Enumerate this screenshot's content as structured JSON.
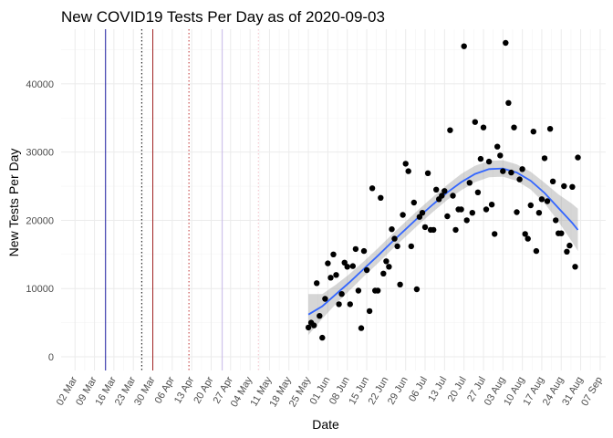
{
  "chart_data": {
    "type": "scatter",
    "title": "New COVID19 Tests Per Day as of 2020-09-03",
    "xlabel": "Date",
    "ylabel": "New Tests Per Day",
    "xlim": [
      "2020-02-26",
      "2020-09-09"
    ],
    "ylim": [
      -2000,
      48000
    ],
    "grid": true,
    "x_ticks": [
      {
        "date": "2020-03-02",
        "label": "02 Mar"
      },
      {
        "date": "2020-03-09",
        "label": "09 Mar"
      },
      {
        "date": "2020-03-16",
        "label": "16 Mar"
      },
      {
        "date": "2020-03-23",
        "label": "23 Mar"
      },
      {
        "date": "2020-03-30",
        "label": "30 Mar"
      },
      {
        "date": "2020-04-06",
        "label": "06 Apr"
      },
      {
        "date": "2020-04-13",
        "label": "13 Apr"
      },
      {
        "date": "2020-04-20",
        "label": "20 Apr"
      },
      {
        "date": "2020-04-27",
        "label": "27 Apr"
      },
      {
        "date": "2020-05-04",
        "label": "04 May"
      },
      {
        "date": "2020-05-11",
        "label": "11 May"
      },
      {
        "date": "2020-05-18",
        "label": "18 May"
      },
      {
        "date": "2020-05-25",
        "label": "25 May"
      },
      {
        "date": "2020-06-01",
        "label": "01 Jun"
      },
      {
        "date": "2020-06-08",
        "label": "08 Jun"
      },
      {
        "date": "2020-06-15",
        "label": "15 Jun"
      },
      {
        "date": "2020-06-22",
        "label": "22 Jun"
      },
      {
        "date": "2020-06-29",
        "label": "29 Jun"
      },
      {
        "date": "2020-07-06",
        "label": "06 Jul"
      },
      {
        "date": "2020-07-13",
        "label": "13 Jul"
      },
      {
        "date": "2020-07-20",
        "label": "20 Jul"
      },
      {
        "date": "2020-07-27",
        "label": "27 Jul"
      },
      {
        "date": "2020-08-03",
        "label": "03 Aug"
      },
      {
        "date": "2020-08-10",
        "label": "10 Aug"
      },
      {
        "date": "2020-08-17",
        "label": "17 Aug"
      },
      {
        "date": "2020-08-24",
        "label": "24 Aug"
      },
      {
        "date": "2020-08-31",
        "label": "31 Aug"
      },
      {
        "date": "2020-09-07",
        "label": "07 Sep"
      }
    ],
    "y_ticks": [
      0,
      10000,
      20000,
      30000,
      40000
    ],
    "vertical_lines": [
      {
        "date": "2020-03-13",
        "color": "#1a1aa0",
        "style": "solid"
      },
      {
        "date": "2020-03-26",
        "color": "#000000",
        "style": "dotted"
      },
      {
        "date": "2020-03-30",
        "color": "#a02020",
        "style": "solid"
      },
      {
        "date": "2020-04-12",
        "color": "#c03030",
        "style": "dotted"
      },
      {
        "date": "2020-04-24",
        "color": "#c8b8e8",
        "style": "solid"
      },
      {
        "date": "2020-05-07",
        "color": "#f0c0c8",
        "style": "dotted"
      }
    ],
    "series": [
      {
        "type": "scatter",
        "color": "#000000",
        "points": [
          [
            "2020-05-25",
            4300
          ],
          [
            "2020-05-26",
            5000
          ],
          [
            "2020-05-27",
            4600
          ],
          [
            "2020-05-28",
            10800
          ],
          [
            "2020-05-29",
            6000
          ],
          [
            "2020-05-30",
            2800
          ],
          [
            "2020-05-31",
            8500
          ],
          [
            "2020-06-01",
            13700
          ],
          [
            "2020-06-02",
            11600
          ],
          [
            "2020-06-03",
            15000
          ],
          [
            "2020-06-04",
            12000
          ],
          [
            "2020-06-05",
            7700
          ],
          [
            "2020-06-06",
            9200
          ],
          [
            "2020-06-07",
            13800
          ],
          [
            "2020-06-08",
            13200
          ],
          [
            "2020-06-09",
            7700
          ],
          [
            "2020-06-10",
            13300
          ],
          [
            "2020-06-11",
            15800
          ],
          [
            "2020-06-12",
            9700
          ],
          [
            "2020-06-13",
            4200
          ],
          [
            "2020-06-14",
            15500
          ],
          [
            "2020-06-15",
            12700
          ],
          [
            "2020-06-16",
            6700
          ],
          [
            "2020-06-17",
            24700
          ],
          [
            "2020-06-18",
            9700
          ],
          [
            "2020-06-19",
            9700
          ],
          [
            "2020-06-20",
            23300
          ],
          [
            "2020-06-21",
            12200
          ],
          [
            "2020-06-22",
            14000
          ],
          [
            "2020-06-23",
            13200
          ],
          [
            "2020-06-24",
            18700
          ],
          [
            "2020-06-25",
            17300
          ],
          [
            "2020-06-26",
            16200
          ],
          [
            "2020-06-27",
            10600
          ],
          [
            "2020-06-28",
            20800
          ],
          [
            "2020-06-29",
            28300
          ],
          [
            "2020-06-30",
            27200
          ],
          [
            "2020-07-01",
            16200
          ],
          [
            "2020-07-02",
            22600
          ],
          [
            "2020-07-03",
            9900
          ],
          [
            "2020-07-04",
            20500
          ],
          [
            "2020-07-05",
            21100
          ],
          [
            "2020-07-06",
            19000
          ],
          [
            "2020-07-07",
            26900
          ],
          [
            "2020-07-08",
            18600
          ],
          [
            "2020-07-09",
            18600
          ],
          [
            "2020-07-10",
            24500
          ],
          [
            "2020-07-11",
            23100
          ],
          [
            "2020-07-12",
            23600
          ],
          [
            "2020-07-13",
            24300
          ],
          [
            "2020-07-14",
            20600
          ],
          [
            "2020-07-15",
            33200
          ],
          [
            "2020-07-16",
            23600
          ],
          [
            "2020-07-17",
            18600
          ],
          [
            "2020-07-18",
            21600
          ],
          [
            "2020-07-19",
            21600
          ],
          [
            "2020-07-20",
            45500
          ],
          [
            "2020-07-21",
            20000
          ],
          [
            "2020-07-22",
            25500
          ],
          [
            "2020-07-23",
            21100
          ],
          [
            "2020-07-24",
            34400
          ],
          [
            "2020-07-25",
            24100
          ],
          [
            "2020-07-26",
            29000
          ],
          [
            "2020-07-27",
            33600
          ],
          [
            "2020-07-28",
            21600
          ],
          [
            "2020-07-29",
            28600
          ],
          [
            "2020-07-30",
            22300
          ],
          [
            "2020-07-31",
            18000
          ],
          [
            "2020-08-01",
            30800
          ],
          [
            "2020-08-02",
            29500
          ],
          [
            "2020-08-03",
            27200
          ],
          [
            "2020-08-04",
            46000
          ],
          [
            "2020-08-05",
            37200
          ],
          [
            "2020-08-06",
            27000
          ],
          [
            "2020-08-07",
            33600
          ],
          [
            "2020-08-08",
            21200
          ],
          [
            "2020-08-09",
            26000
          ],
          [
            "2020-08-10",
            27500
          ],
          [
            "2020-08-11",
            18000
          ],
          [
            "2020-08-12",
            17300
          ],
          [
            "2020-08-13",
            22200
          ],
          [
            "2020-08-14",
            33000
          ],
          [
            "2020-08-15",
            15500
          ],
          [
            "2020-08-16",
            21100
          ],
          [
            "2020-08-17",
            23100
          ],
          [
            "2020-08-18",
            29100
          ],
          [
            "2020-08-19",
            22800
          ],
          [
            "2020-08-20",
            33400
          ],
          [
            "2020-08-21",
            25700
          ],
          [
            "2020-08-22",
            20000
          ],
          [
            "2020-08-23",
            18100
          ],
          [
            "2020-08-24",
            18100
          ],
          [
            "2020-08-25",
            25000
          ],
          [
            "2020-08-26",
            15400
          ],
          [
            "2020-08-27",
            16300
          ],
          [
            "2020-08-28",
            24900
          ],
          [
            "2020-08-29",
            13200
          ],
          [
            "2020-08-30",
            29200
          ]
        ]
      },
      {
        "type": "smooth",
        "color": "#3366ff",
        "band_color": "#999999",
        "points": [
          [
            "2020-05-25",
            6200,
            3200,
            9200
          ],
          [
            "2020-05-30",
            7400,
            5600,
            9200
          ],
          [
            "2020-06-04",
            9200,
            7800,
            10600
          ],
          [
            "2020-06-09",
            11000,
            9800,
            12200
          ],
          [
            "2020-06-14",
            12900,
            11800,
            14000
          ],
          [
            "2020-06-19",
            14800,
            13700,
            15900
          ],
          [
            "2020-06-24",
            16800,
            15700,
            17900
          ],
          [
            "2020-06-29",
            18700,
            17600,
            19800
          ],
          [
            "2020-07-04",
            20600,
            19500,
            21700
          ],
          [
            "2020-07-09",
            22400,
            21300,
            23500
          ],
          [
            "2020-07-14",
            24100,
            23000,
            25200
          ],
          [
            "2020-07-19",
            25600,
            24400,
            26800
          ],
          [
            "2020-07-24",
            26800,
            25600,
            28000
          ],
          [
            "2020-07-29",
            27500,
            26300,
            28700
          ],
          [
            "2020-08-03",
            27600,
            26400,
            28800
          ],
          [
            "2020-08-08",
            27000,
            25800,
            28200
          ],
          [
            "2020-08-13",
            25800,
            24500,
            27100
          ],
          [
            "2020-08-18",
            24000,
            22500,
            25500
          ],
          [
            "2020-08-23",
            21800,
            19800,
            23800
          ],
          [
            "2020-08-28",
            19600,
            16800,
            22400
          ],
          [
            "2020-08-30",
            18600,
            15500,
            21700
          ]
        ]
      }
    ]
  }
}
